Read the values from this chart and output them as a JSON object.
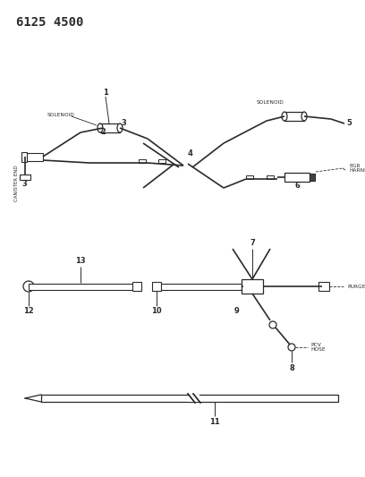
{
  "title": "6125 4500",
  "bg_color": "#ffffff",
  "line_color": "#2a2a2a",
  "text_color": "#2a2a2a",
  "title_fontsize": 10,
  "label_fontsize": 4.8,
  "number_fontsize": 6.0,
  "fig_width": 4.08,
  "fig_height": 5.33,
  "dpi": 100,
  "canister_end_label": "CANISTER END",
  "purge_label": "PURGE",
  "egr_label": "EGR\nHARNESS",
  "pcv_label": "PCV\nHOSE",
  "solenoid_label_left": "SOLENOID",
  "solenoid_label_right": "SOLENOID"
}
